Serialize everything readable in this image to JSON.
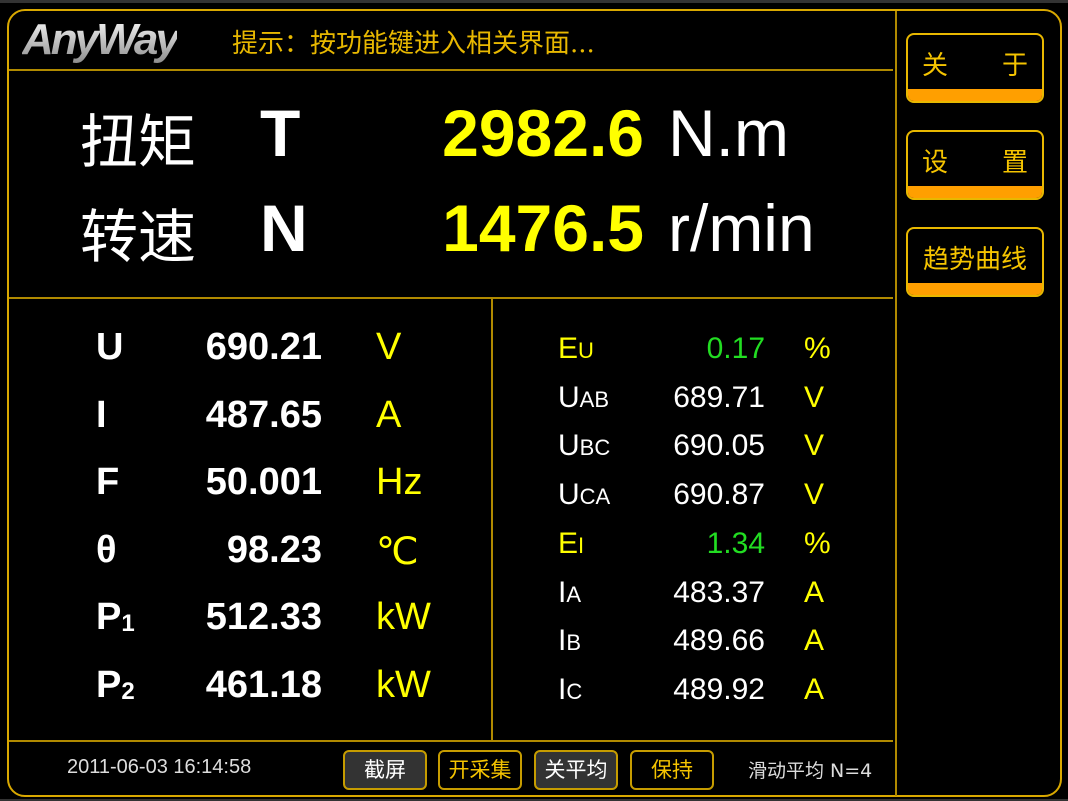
{
  "header": {
    "logo": "AnyWay",
    "hint": "提示：按功能键进入相关界面..."
  },
  "main": [
    {
      "label": "扭矩",
      "symbol": "T",
      "value": "2982.6",
      "unit": "N.m"
    },
    {
      "label": "转速",
      "symbol": "N",
      "value": "1476.5",
      "unit": "r/min"
    }
  ],
  "left": [
    {
      "symbol": "U",
      "sub": "",
      "value": "690.21",
      "unit": "V"
    },
    {
      "symbol": "I",
      "sub": "",
      "value": "487.65",
      "unit": "A"
    },
    {
      "symbol": "F",
      "sub": "",
      "value": "50.001",
      "unit": "Hz"
    },
    {
      "symbol": "θ",
      "sub": "",
      "value": "98.23",
      "unit": "℃"
    },
    {
      "symbol": "P",
      "sub": "1",
      "value": "512.33",
      "unit": "kW"
    },
    {
      "symbol": "P",
      "sub": "2",
      "value": "461.18",
      "unit": "kW"
    }
  ],
  "right": [
    {
      "symbol": "E",
      "sub": "U",
      "value": "0.17",
      "unit": "%",
      "highlight": true
    },
    {
      "symbol": "U",
      "sub": "AB",
      "value": "689.71",
      "unit": "V"
    },
    {
      "symbol": "U",
      "sub": "BC",
      "value": "690.05",
      "unit": "V"
    },
    {
      "symbol": "U",
      "sub": "CA",
      "value": "690.87",
      "unit": "V"
    },
    {
      "symbol": "E",
      "sub": "I",
      "value": "1.34",
      "unit": "%",
      "highlight": true
    },
    {
      "symbol": "I",
      "sub": "A",
      "value": "483.37",
      "unit": "A"
    },
    {
      "symbol": "I",
      "sub": "B",
      "value": "489.66",
      "unit": "A"
    },
    {
      "symbol": "I",
      "sub": "C",
      "value": "489.92",
      "unit": "A"
    }
  ],
  "sidebar": [
    [
      "关",
      "于"
    ],
    [
      "设",
      "置"
    ],
    [
      "趋势曲线"
    ]
  ],
  "footer": {
    "datetime": "2011-06-03 16:14:58",
    "buttons": [
      "截屏",
      "开采集",
      "关平均",
      "保持"
    ],
    "status": "滑动平均 N=4"
  },
  "colors": {
    "accent": "#e8b800",
    "value": "#ffff00",
    "highlight": "#22dd22",
    "button_bar": "#ff9f00"
  }
}
